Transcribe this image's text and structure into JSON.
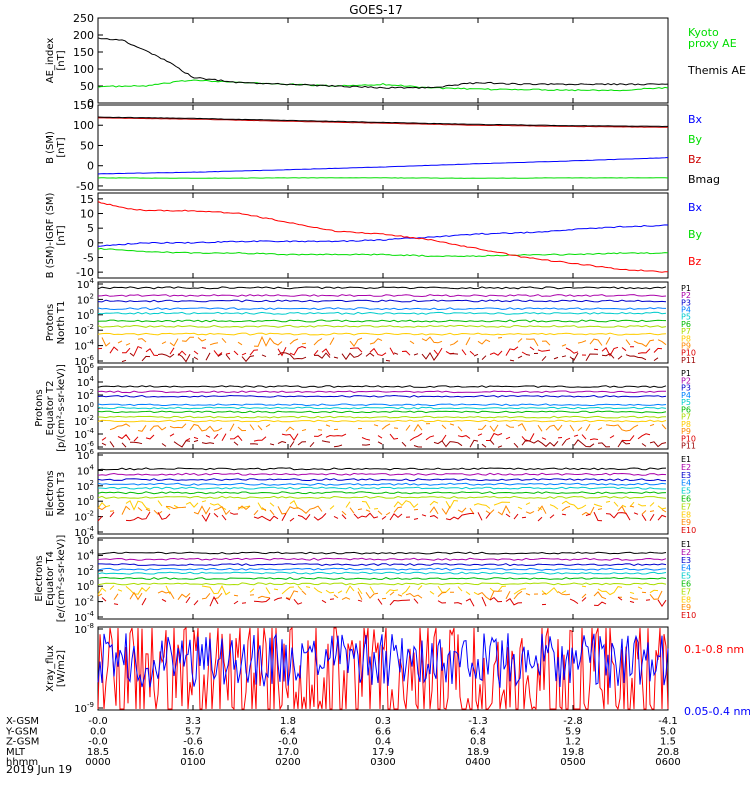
{
  "title": "GOES-17",
  "date_label": "2019 Jun 19",
  "bottom_axis": {
    "rows": [
      {
        "label": "X-GSM",
        "values": [
          "-0.0",
          "3.3",
          "1.8",
          "0.3",
          "-1.3",
          "-2.8",
          "-4.1"
        ]
      },
      {
        "label": "Y-GSM",
        "values": [
          "0.0",
          "5.7",
          "6.4",
          "6.6",
          "6.4",
          "5.9",
          "5.0"
        ]
      },
      {
        "label": "Z-GSM",
        "values": [
          "-0.0",
          "-0.6",
          "-0.0",
          "0.4",
          "0.8",
          "1.2",
          "1.5"
        ]
      },
      {
        "label": "MLT",
        "values": [
          "18.5",
          "16.0",
          "17.0",
          "17.9",
          "18.9",
          "19.8",
          "20.8"
        ]
      },
      {
        "label": "hhmm",
        "values": [
          "0000",
          "0100",
          "0200",
          "0300",
          "0400",
          "0500",
          "0600"
        ]
      }
    ]
  },
  "colors": {
    "black": "#000000",
    "red": "#ff0000",
    "green": "#00dd00",
    "blue": "#0000ff",
    "darkred": "#cc0000",
    "frame": "#000000"
  },
  "chart_data": [
    {
      "type": "line",
      "ylabel": "AE_index\n[nT]",
      "ylim": [
        0,
        250
      ],
      "yticks": [
        "0",
        "50",
        "100",
        "150",
        "200",
        "250"
      ],
      "xlim": [
        "0000",
        "0600"
      ],
      "series": [
        {
          "name": "Kyoto\nproxy AE",
          "color": "#00dd00",
          "x": [
            0,
            0.5,
            1,
            1.5,
            2,
            2.5,
            3,
            3.5,
            4,
            4.5,
            5,
            5.5,
            6
          ],
          "y": [
            48,
            50,
            68,
            60,
            55,
            50,
            55,
            45,
            40,
            40,
            38,
            38,
            45
          ]
        },
        {
          "name": "Themis AE",
          "color": "#000000",
          "x": [
            0,
            0.25,
            0.5,
            0.75,
            1,
            1.5,
            2,
            2.5,
            3,
            3.5,
            4,
            4.5,
            5,
            5.5,
            6
          ],
          "y": [
            190,
            185,
            155,
            120,
            75,
            60,
            55,
            50,
            45,
            45,
            60,
            55,
            55,
            55,
            55
          ]
        }
      ]
    },
    {
      "type": "line",
      "ylabel": "B (SM)\n[nT]",
      "ylim": [
        -60,
        150
      ],
      "yticks": [
        "-50",
        "0",
        "50",
        "100",
        "150"
      ],
      "series": [
        {
          "name": "Bx",
          "color": "#0000ff",
          "x": [
            0,
            1,
            2,
            3,
            4,
            5,
            6
          ],
          "y": [
            -20,
            -16,
            -10,
            -3,
            5,
            12,
            20
          ]
        },
        {
          "name": "By",
          "color": "#00dd00",
          "x": [
            0,
            1,
            2,
            3,
            4,
            5,
            6
          ],
          "y": [
            -30,
            -31,
            -30,
            -30,
            -31,
            -30,
            -30
          ]
        },
        {
          "name": "Bz",
          "color": "#cc0000",
          "x": [
            0,
            1,
            2,
            3,
            4,
            5,
            6
          ],
          "y": [
            118,
            115,
            110,
            105,
            100,
            97,
            95
          ]
        },
        {
          "name": "Bmag",
          "color": "#000000",
          "x": [
            0,
            1,
            2,
            3,
            4,
            5,
            6
          ],
          "y": [
            120,
            117,
            112,
            107,
            102,
            99,
            97
          ]
        }
      ]
    },
    {
      "type": "line",
      "ylabel": "B (SM)-IGRF (SM)\n[nT]",
      "ylim": [
        -12,
        17
      ],
      "yticks": [
        "-10",
        "-5",
        "0",
        "5",
        "10",
        "15"
      ],
      "series": [
        {
          "name": "Bx",
          "color": "#0000ff",
          "x": [
            0,
            0.5,
            1,
            1.5,
            2,
            2.5,
            3,
            3.5,
            4,
            4.5,
            5,
            5.5,
            6
          ],
          "y": [
            -1,
            0,
            0,
            0.5,
            0.5,
            0.5,
            1,
            2,
            3,
            3.5,
            4.5,
            5.5,
            6
          ]
        },
        {
          "name": "By",
          "color": "#00dd00",
          "x": [
            0,
            0.5,
            1,
            1.5,
            2,
            2.5,
            3,
            3.5,
            4,
            4.5,
            5,
            5.5,
            6
          ],
          "y": [
            -2,
            -3,
            -3.5,
            -3.5,
            -4,
            -4,
            -4,
            -4.5,
            -4.5,
            -4,
            -4,
            -3.5,
            -3.5
          ]
        },
        {
          "name": "Bz",
          "color": "#ff0000",
          "x": [
            0,
            0.25,
            0.5,
            1,
            1.5,
            2,
            2.5,
            3,
            3.5,
            4,
            4.5,
            5,
            5.5,
            6
          ],
          "y": [
            14,
            12,
            11,
            11,
            10,
            7,
            4,
            3,
            1,
            -2,
            -5,
            -7,
            -9,
            -10
          ]
        }
      ]
    },
    {
      "type": "line",
      "ylabel": "Protons\nNorth T1",
      "yscale": "log",
      "yticks": [
        "10^-6",
        "10^-4",
        "10^-2",
        "10^0",
        "10^2",
        "10^4"
      ],
      "legend": [
        "P1",
        "P2",
        "P3",
        "P4",
        "P5",
        "P6",
        "P7",
        "P8",
        "P9",
        "P10",
        "P11"
      ],
      "level_exponents": [
        3.5,
        2.5,
        1.8,
        0.8,
        0.2,
        -0.8,
        -1.5,
        -2.5,
        -3.5,
        -4.7,
        -5.5
      ]
    },
    {
      "type": "line",
      "ylabel": "Protons\nEquator T2\n[p/(cm²-s-sr-keV)]",
      "yscale": "log",
      "yticks": [
        "10^-6",
        "10^-4",
        "10^-2",
        "10^0",
        "10^2",
        "10^4",
        "10^6"
      ],
      "legend": [
        "P1",
        "P2",
        "P3",
        "P4",
        "P5",
        "P6",
        "P7",
        "P8",
        "P9",
        "P10",
        "P11"
      ],
      "level_exponents": [
        3.3,
        2.5,
        1.8,
        0.5,
        0,
        -0.6,
        -1.4,
        -2,
        -3,
        -4.5,
        -5.5
      ]
    },
    {
      "type": "line",
      "ylabel": "Electrons\nNorth T3",
      "yscale": "log",
      "yticks": [
        "10^-4",
        "10^-2",
        "10^0",
        "10^2",
        "10^4",
        "10^6"
      ],
      "legend": [
        "E1",
        "E2",
        "E3",
        "E4",
        "E5",
        "E6",
        "E7",
        "E8",
        "E9",
        "E10"
      ],
      "level_exponents": [
        4.2,
        3.5,
        2.8,
        2.2,
        1.7,
        1.1,
        0.5,
        -0.5,
        -1.2,
        -2.0
      ]
    },
    {
      "type": "line",
      "ylabel": "Electrons\nEquator T4\n[e/(cm²-s-sr-keV)]",
      "yscale": "log",
      "yticks": [
        "10^-4",
        "10^-2",
        "10^0",
        "10^2",
        "10^4",
        "10^6"
      ],
      "legend": [
        "E1",
        "E2",
        "E3",
        "E4",
        "E5",
        "E6",
        "E7",
        "E8",
        "E9",
        "E10"
      ],
      "level_exponents": [
        4.3,
        3.5,
        2.8,
        2.2,
        1.7,
        1.0,
        0.3,
        -0.5,
        -1.2,
        -2.0
      ]
    },
    {
      "type": "line",
      "ylabel": "Xray_flux\n[W/m2]",
      "yscale": "log",
      "yticks": [
        "10^-9",
        "10^-8"
      ],
      "series": [
        {
          "name": "0.1-0.8 nm",
          "color": "#ff0000",
          "level_exponent": -8.7
        },
        {
          "name": "0.05-0.4 nm",
          "color": "#0000ff",
          "level_exponent": -8.4
        }
      ]
    }
  ]
}
